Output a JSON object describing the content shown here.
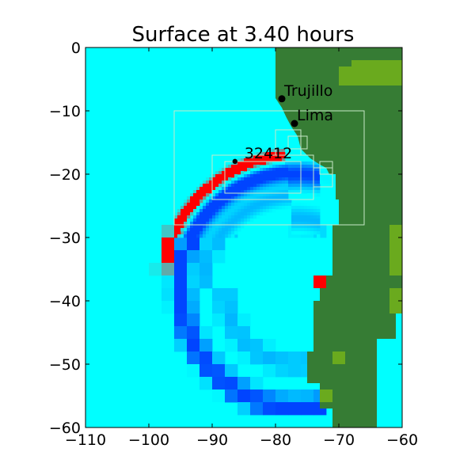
{
  "chart_data": {
    "type": "heatmap",
    "title": "Surface at 3.40 hours",
    "xlabel": "",
    "ylabel": "",
    "xlim": [
      -110,
      -60
    ],
    "ylim": [
      -60,
      0
    ],
    "xticks": [
      -110,
      -100,
      -90,
      -80,
      -70,
      -60
    ],
    "xtick_labels": [
      "−110",
      "−100",
      "−90",
      "−80",
      "−70",
      "−60"
    ],
    "yticks": [
      0,
      -10,
      -20,
      -30,
      -40,
      -50,
      -60
    ],
    "ytick_labels": [
      "0",
      "−10",
      "−20",
      "−30",
      "−40",
      "−50",
      "−60"
    ],
    "grid": false,
    "colors": {
      "ocean_background": "#00ffff",
      "land": "#367c34",
      "land_high": "#6aaa1e",
      "wave_crest": "#ff0000",
      "wave_trough": "#0044ff",
      "wave_secondary": "#888888",
      "amr_patch_border": "#c8e8c8"
    },
    "points": [
      {
        "label": "Trujillo",
        "x": -79.0,
        "y": -8.1
      },
      {
        "label": "Lima",
        "x": -77.0,
        "y": -12.0
      },
      {
        "label": "32412",
        "x": -86.4,
        "y": -17.98
      }
    ],
    "amr_patches": [
      {
        "x0": -96,
        "x1": -66,
        "y0": -28,
        "y1": -10
      },
      {
        "x0": -90,
        "x1": -74,
        "y0": -24,
        "y1": -17
      },
      {
        "x0": -88,
        "x1": -76,
        "y0": -23,
        "y1": -18
      },
      {
        "x0": -80,
        "x1": -76,
        "y0": -17,
        "y1": -13
      },
      {
        "x0": -78,
        "x1": -75,
        "y0": -16,
        "y1": -14
      },
      {
        "x0": -74,
        "x1": -71,
        "y0": -22,
        "y1": -19
      },
      {
        "x0": -73,
        "x1": -71,
        "y0": -20,
        "y1": -18
      }
    ]
  }
}
